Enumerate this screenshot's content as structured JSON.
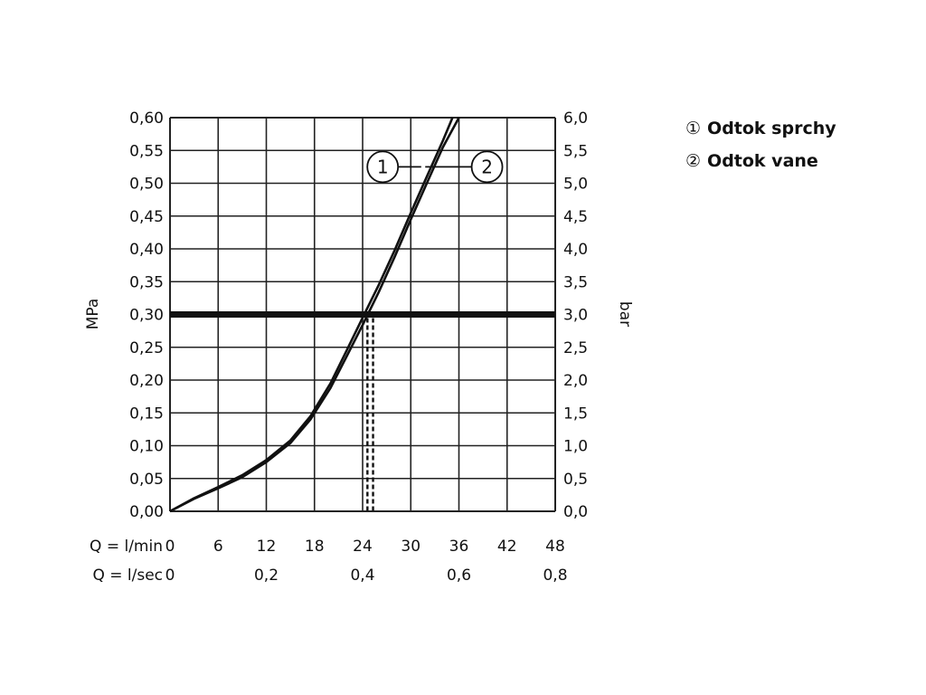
{
  "chart_data": {
    "type": "line",
    "ylabel_left": "MPa",
    "ylabel_right": "bar",
    "xlabel_rows": [
      {
        "label": "Q = l/min",
        "ticks": [
          "0",
          "6",
          "12",
          "18",
          "24",
          "30",
          "36",
          "42",
          "48"
        ],
        "values": [
          0,
          6,
          12,
          18,
          24,
          30,
          36,
          42,
          48
        ]
      },
      {
        "label": "Q = l/sec",
        "ticks": [
          "0",
          "0,2",
          "0,4",
          "0,6",
          "0,8"
        ],
        "values": [
          0,
          12,
          24,
          36,
          48
        ]
      }
    ],
    "xlim": [
      0,
      48
    ],
    "ylim": [
      0,
      0.6
    ],
    "yticks_left": [
      "0,00",
      "0,05",
      "0,10",
      "0,15",
      "0,20",
      "0,25",
      "0,30",
      "0,35",
      "0,40",
      "0,45",
      "0,50",
      "0,55",
      "0,60"
    ],
    "yticks_right": [
      "0,0",
      "0,5",
      "1,0",
      "1,5",
      "2,0",
      "2,5",
      "3,0",
      "3,5",
      "4,0",
      "4,5",
      "5,0",
      "5,5",
      "6,0"
    ],
    "grid": true,
    "series": [
      {
        "name": "1",
        "x": [
          0,
          3,
          6,
          9,
          12,
          15,
          17.5,
          20,
          22,
          24,
          26,
          28,
          30,
          32,
          34,
          35.2
        ],
        "y": [
          0,
          0.02,
          0.037,
          0.055,
          0.078,
          0.108,
          0.145,
          0.195,
          0.245,
          0.295,
          0.345,
          0.398,
          0.455,
          0.51,
          0.565,
          0.6
        ]
      },
      {
        "name": "2",
        "x": [
          0,
          3,
          6,
          9,
          12,
          15,
          17.5,
          20,
          22,
          24,
          26,
          28,
          30,
          32,
          34,
          36
        ],
        "y": [
          0,
          0.019,
          0.035,
          0.052,
          0.075,
          0.104,
          0.14,
          0.188,
          0.236,
          0.284,
          0.334,
          0.388,
          0.445,
          0.5,
          0.555,
          0.6
        ]
      }
    ],
    "reference_line": {
      "y": 0.3
    },
    "intersections": [
      {
        "series": "1",
        "x": 24.6
      },
      {
        "series": "2",
        "x": 25.3
      }
    ],
    "annotations": [
      {
        "label": "1",
        "x": 26.5,
        "y": 0.525
      },
      {
        "label": "2",
        "x": 39.5,
        "y": 0.525
      }
    ],
    "legend": [
      {
        "marker": "①",
        "label": "Odtok sprchy"
      },
      {
        "marker": "②",
        "label": "Odtok vane"
      }
    ]
  }
}
